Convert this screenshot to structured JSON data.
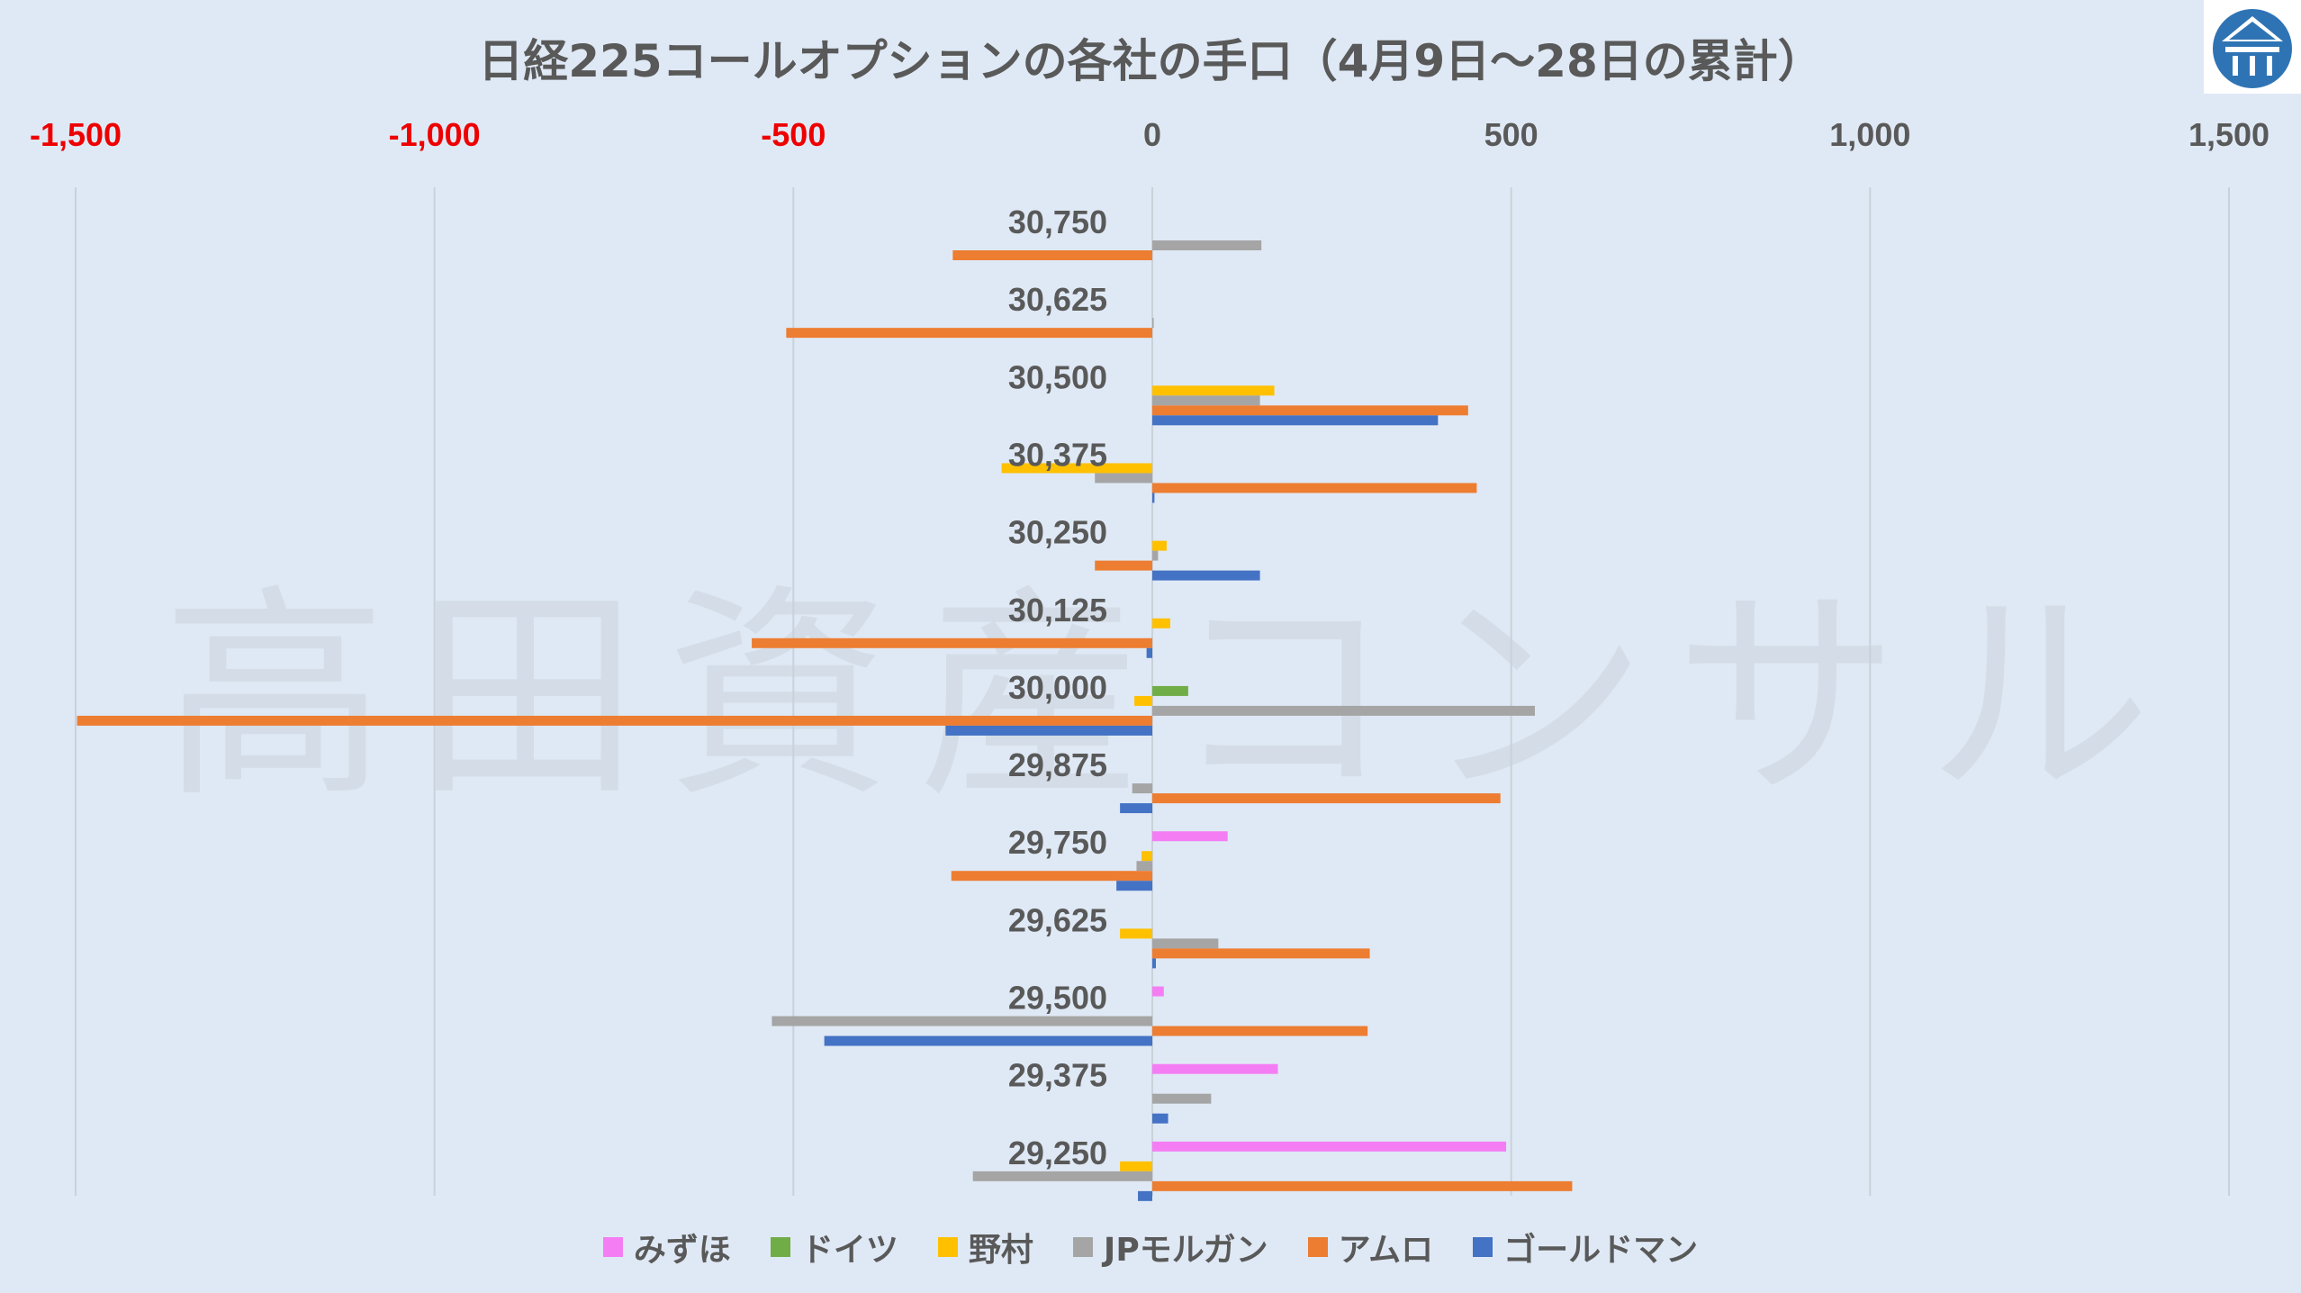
{
  "chart_data": {
    "type": "bar",
    "orientation": "horizontal",
    "title": "日経225コールオプションの各社の手口（4月9日～28日の累計）",
    "watermark": "高田資産コンサル",
    "xlim": [
      -1500,
      1500
    ],
    "x_ticks": [
      {
        "value": -1500,
        "label": "-1,500"
      },
      {
        "value": -1000,
        "label": "-1,000"
      },
      {
        "value": -500,
        "label": "-500"
      },
      {
        "value": 0,
        "label": "0"
      },
      {
        "value": 500,
        "label": "500"
      },
      {
        "value": 1000,
        "label": "1,000"
      },
      {
        "value": 1500,
        "label": "1,500"
      }
    ],
    "x_axis_position": "top",
    "negative_tick_color": "#ee0000",
    "positive_tick_color": "#595959",
    "gridlines": "vertical",
    "legend_position": "bottom",
    "categories": [
      "30,750",
      "30,625",
      "30,500",
      "30,375",
      "30,250",
      "30,125",
      "30,000",
      "29,875",
      "29,750",
      "29,625",
      "29,500",
      "29,375",
      "29,250"
    ],
    "series": [
      {
        "name": "みずほ",
        "color": "#f47df4",
        "values": [
          0,
          0,
          0,
          0,
          0,
          0,
          0,
          0,
          105,
          0,
          16,
          175,
          493
        ]
      },
      {
        "name": "ドイツ",
        "color": "#70ad47",
        "values": [
          0,
          0,
          0,
          0,
          0,
          0,
          50,
          0,
          0,
          0,
          0,
          0,
          0
        ]
      },
      {
        "name": "野村",
        "color": "#ffc000",
        "values": [
          0,
          0,
          170,
          -210,
          20,
          25,
          -25,
          0,
          -15,
          -45,
          0,
          0,
          -45
        ]
      },
      {
        "name": "JPモルガン",
        "color": "#a5a5a5",
        "values": [
          152,
          2,
          150,
          -80,
          8,
          0,
          533,
          -28,
          -22,
          92,
          -530,
          82,
          -250
        ]
      },
      {
        "name": "アムロ",
        "color": "#ed7d31",
        "values": [
          -278,
          -510,
          440,
          452,
          -80,
          -558,
          -1498,
          485,
          -280,
          303,
          300,
          0,
          585
        ]
      },
      {
        "name": "ゴールドマン",
        "color": "#4472c4",
        "values": [
          0,
          0,
          398,
          3,
          150,
          -8,
          -288,
          -45,
          -50,
          5,
          -457,
          22,
          -20
        ]
      }
    ]
  }
}
